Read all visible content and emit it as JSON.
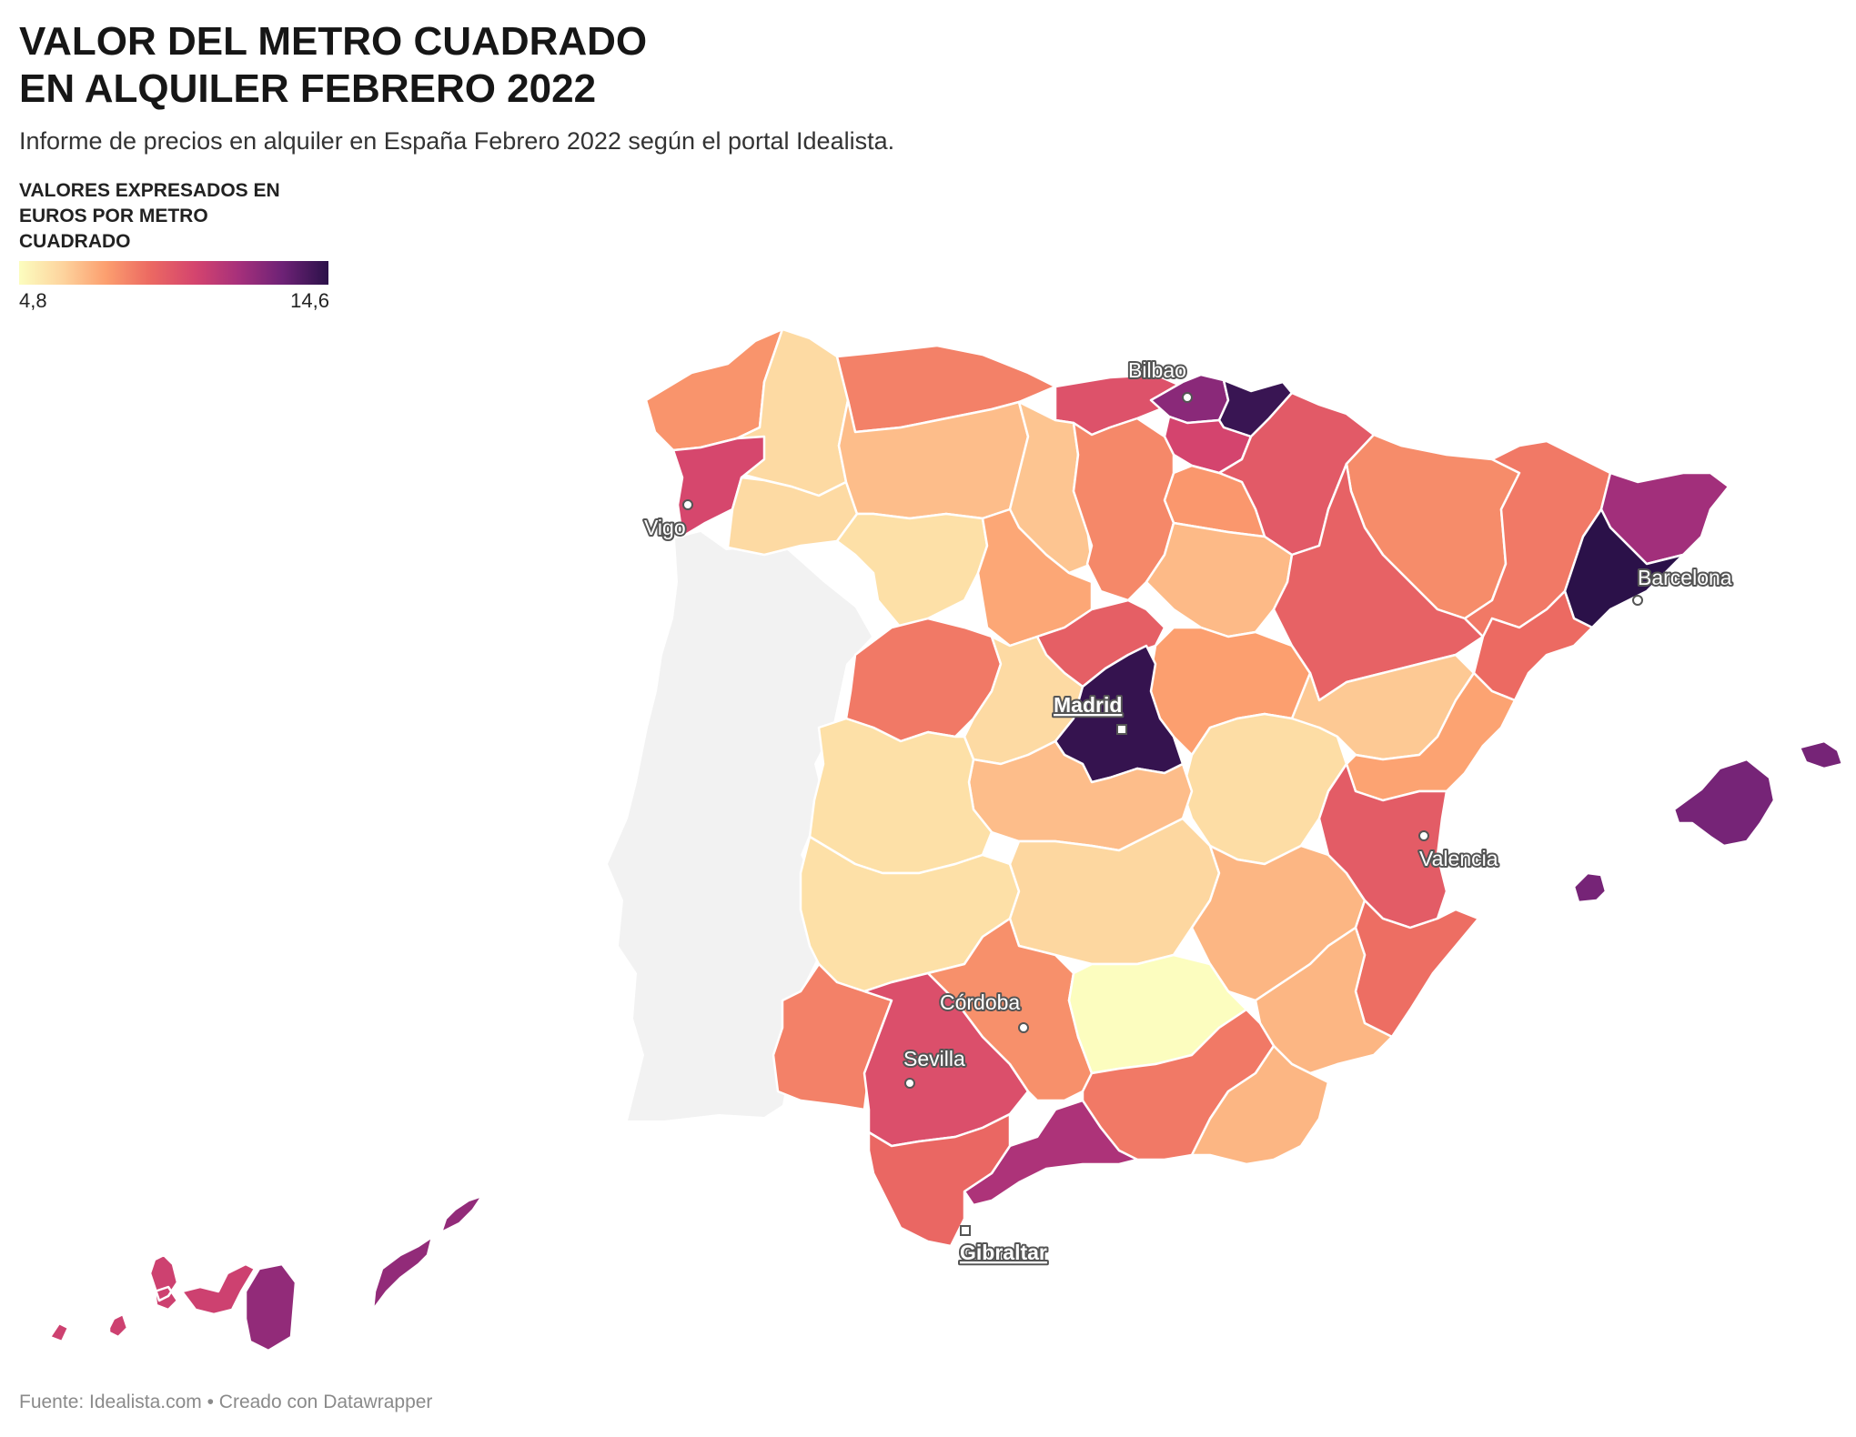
{
  "header": {
    "title": "VALOR DEL METRO CUADRADO\n  EN ALQUILER FEBRERO 2022",
    "subtitle": "Informe de precios en alquiler en España Febrero 2022 según el portal Idealista."
  },
  "legend": {
    "title": "VALORES EXPRESADOS EN EUROS POR METRO CUADRADO",
    "min_label": "4,8",
    "max_label": "14,6",
    "min": 4.8,
    "max": 14.6,
    "colors": [
      "#fcfdbf",
      "#fdd49e",
      "#fc9f6f",
      "#ec6a62",
      "#d4446e",
      "#a6307b",
      "#6e2276",
      "#2b1149"
    ]
  },
  "map": {
    "portugal_color": "#f2f2f2",
    "provinces": [
      {
        "name": "A Coruña",
        "value": 7.9
      },
      {
        "name": "Lugo",
        "value": 6.0
      },
      {
        "name": "Pontevedra",
        "value": 10.3
      },
      {
        "name": "Ourense",
        "value": 6.0
      },
      {
        "name": "Asturias",
        "value": 8.4
      },
      {
        "name": "Cantabria",
        "value": 9.9
      },
      {
        "name": "Bizkaia",
        "value": 12.5
      },
      {
        "name": "Gipuzkoa",
        "value": 14.3
      },
      {
        "name": "Álava",
        "value": 10.4
      },
      {
        "name": "Navarra",
        "value": 9.6
      },
      {
        "name": "La Rioja",
        "value": 7.8
      },
      {
        "name": "León",
        "value": 6.8
      },
      {
        "name": "Palencia",
        "value": 6.6
      },
      {
        "name": "Burgos",
        "value": 8.2
      },
      {
        "name": "Zamora",
        "value": 5.8
      },
      {
        "name": "Valladolid",
        "value": 7.4
      },
      {
        "name": "Soria",
        "value": 6.9
      },
      {
        "name": "Salamanca",
        "value": 8.6
      },
      {
        "name": "Segovia",
        "value": 9.4
      },
      {
        "name": "Ávila",
        "value": 6.0
      },
      {
        "name": "Guadalajara",
        "value": 7.6
      },
      {
        "name": "Huesca",
        "value": 8.1
      },
      {
        "name": "Zaragoza",
        "value": 9.3
      },
      {
        "name": "Teruel",
        "value": 6.5
      },
      {
        "name": "Lleida",
        "value": 8.6
      },
      {
        "name": "Girona",
        "value": 11.9
      },
      {
        "name": "Barcelona",
        "value": 14.6
      },
      {
        "name": "Tarragona",
        "value": 9.0
      },
      {
        "name": "Madrid",
        "value": 14.4
      },
      {
        "name": "Cuenca",
        "value": 5.9
      },
      {
        "name": "Toledo",
        "value": 6.8
      },
      {
        "name": "Cáceres",
        "value": 5.8
      },
      {
        "name": "Badajoz",
        "value": 5.8
      },
      {
        "name": "Ciudad Real",
        "value": 6.1
      },
      {
        "name": "Albacete",
        "value": 7.0
      },
      {
        "name": "Castellón",
        "value": 7.5
      },
      {
        "name": "Valencia",
        "value": 9.5
      },
      {
        "name": "Alicante",
        "value": 8.9
      },
      {
        "name": "Murcia",
        "value": 7.0
      },
      {
        "name": "Huelva",
        "value": 8.4
      },
      {
        "name": "Sevilla",
        "value": 10.0
      },
      {
        "name": "Córdoba",
        "value": 8.0
      },
      {
        "name": "Jaén",
        "value": 4.8
      },
      {
        "name": "Granada",
        "value": 8.6
      },
      {
        "name": "Almería",
        "value": 7.0
      },
      {
        "name": "Málaga",
        "value": 11.6
      },
      {
        "name": "Cádiz",
        "value": 9.1
      },
      {
        "name": "Mallorca",
        "value": 13.0
      },
      {
        "name": "Menorca",
        "value": 13.0
      },
      {
        "name": "Ibiza",
        "value": 13.0
      },
      {
        "name": "Las Palmas",
        "value": 12.3
      },
      {
        "name": "Santa Cruz de Tenerife",
        "value": 10.6
      }
    ],
    "cities": [
      {
        "name": "Bilbao",
        "bold": false
      },
      {
        "name": "Vigo",
        "bold": false
      },
      {
        "name": "Barcelona",
        "bold": false
      },
      {
        "name": "Madrid",
        "bold": true
      },
      {
        "name": "Valencia",
        "bold": false
      },
      {
        "name": "Córdoba",
        "bold": false
      },
      {
        "name": "Sevilla",
        "bold": false
      },
      {
        "name": "Gibraltar",
        "bold": true
      }
    ]
  },
  "footer": {
    "source": "Fuente: Idealista.com • Creado con Datawrapper"
  }
}
